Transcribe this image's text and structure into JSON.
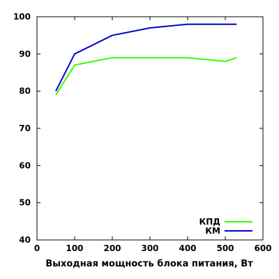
{
  "chart_data": {
    "type": "line",
    "xlabel": "Выходная мощность блока питания, Вт",
    "ylabel": "",
    "xlim": [
      0,
      600
    ],
    "ylim": [
      40,
      100
    ],
    "xticks": [
      "0",
      "100",
      "200",
      "300",
      "400",
      "500",
      "600"
    ],
    "yticks": [
      "40",
      "50",
      "60",
      "70",
      "80",
      "90",
      "100"
    ],
    "grid": false,
    "legend_position": "bottom-right",
    "series": [
      {
        "name": "КПД",
        "color": "#33ff00",
        "x": [
          50,
          100,
          200,
          300,
          400,
          500,
          530
        ],
        "y": [
          79,
          87,
          89,
          89,
          89,
          88,
          89
        ]
      },
      {
        "name": "КМ",
        "color": "#0000cc",
        "x": [
          50,
          100,
          200,
          300,
          400,
          500,
          530
        ],
        "y": [
          80,
          90,
          95,
          97,
          98,
          98,
          98
        ]
      }
    ]
  }
}
